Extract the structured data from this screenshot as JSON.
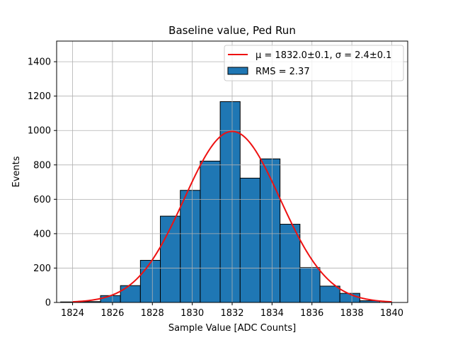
{
  "chart_data": {
    "type": "bar",
    "title": "Baseline value, Ped Run",
    "xlabel": "Sample Value [ADC Counts]",
    "ylabel": "Events",
    "xlim": [
      1823.2,
      1840.8
    ],
    "ylim": [
      0,
      1520
    ],
    "grid": true,
    "xticks": [
      1824,
      1826,
      1828,
      1830,
      1832,
      1834,
      1836,
      1838,
      1840
    ],
    "yticks": [
      0,
      200,
      400,
      600,
      800,
      1000,
      1200,
      1400
    ],
    "bin_width": 1,
    "bins": [
      {
        "center": 1823.9,
        "value": 3
      },
      {
        "center": 1824.9,
        "value": 5
      },
      {
        "center": 1825.9,
        "value": 40
      },
      {
        "center": 1826.9,
        "value": 98
      },
      {
        "center": 1827.9,
        "value": 245
      },
      {
        "center": 1828.9,
        "value": 502
      },
      {
        "center": 1829.9,
        "value": 652
      },
      {
        "center": 1830.9,
        "value": 822
      },
      {
        "center": 1831.9,
        "value": 1168
      },
      {
        "center": 1832.9,
        "value": 723
      },
      {
        "center": 1833.9,
        "value": 835
      },
      {
        "center": 1834.9,
        "value": 455
      },
      {
        "center": 1835.9,
        "value": 203
      },
      {
        "center": 1836.9,
        "value": 95
      },
      {
        "center": 1837.9,
        "value": 53
      },
      {
        "center": 1838.9,
        "value": 10
      }
    ],
    "fit": {
      "mu": 1832.0,
      "sigma": 2.4,
      "amplitude": 995,
      "x_range": [
        1824,
        1840
      ]
    },
    "legend": {
      "position": "top-right",
      "entries": [
        {
          "label": "μ = 1832.0±0.1, σ = 2.4±0.1",
          "kind": "line",
          "color": "#ee1111"
        },
        {
          "label": "RMS = 2.37",
          "kind": "patch",
          "color": "#1f77b4"
        }
      ]
    },
    "colors": {
      "bar": "#1f77b4",
      "bar_edge": "#000000",
      "fit": "#ee1111",
      "grid": "#b0b0b0"
    }
  }
}
